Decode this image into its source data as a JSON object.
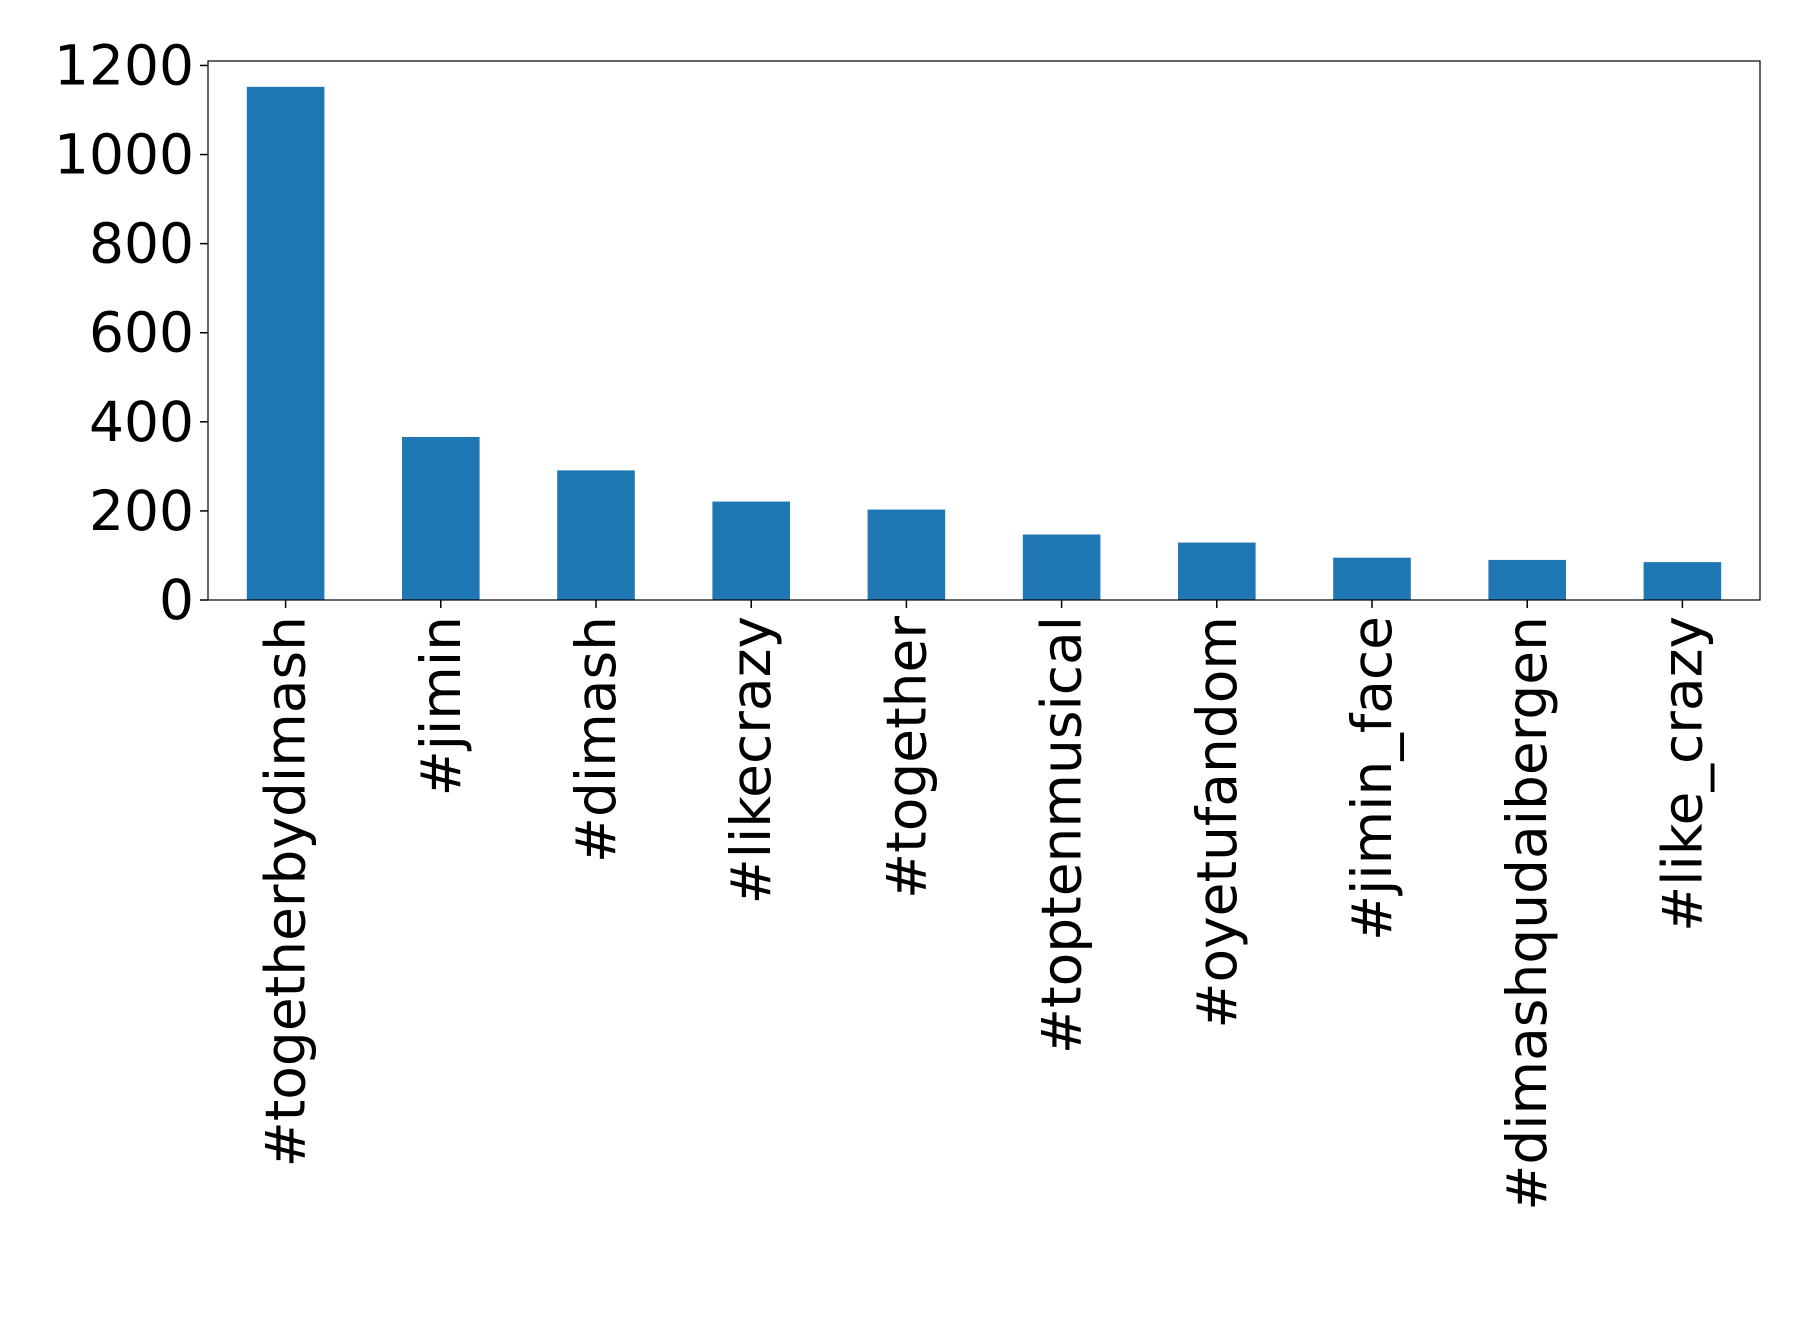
{
  "chart_data": {
    "type": "bar",
    "categories": [
      "#togetherbydimash",
      "#jimin",
      "#dimash",
      "#likecrazy",
      "#together",
      "#toptenmusical",
      "#oyetufandom",
      "#jimin_face",
      "#dimashqudaibergen",
      "#like_crazy"
    ],
    "values": [
      1152,
      366,
      291,
      221,
      203,
      147,
      129,
      95,
      90,
      85
    ],
    "color": "#1f77b4",
    "ylim": [
      0,
      1210
    ],
    "yticks": [
      0,
      200,
      400,
      600,
      800,
      1000,
      1200
    ],
    "grid": false
  }
}
